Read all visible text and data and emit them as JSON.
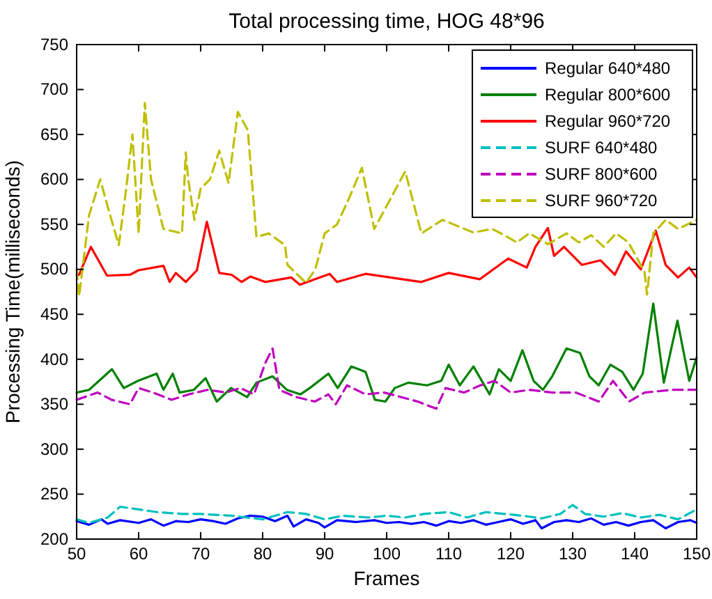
{
  "chart_data": {
    "type": "line",
    "title": "Total processing time, HOG 48*96",
    "xlabel": "Frames",
    "ylabel": "Processing Time(milliseconds)",
    "xlim": [
      50,
      150
    ],
    "xticks": [
      50,
      60,
      70,
      80,
      90,
      100,
      110,
      120,
      130,
      140,
      150
    ],
    "ylim": [
      200,
      750
    ],
    "yticks": [
      200,
      250,
      300,
      350,
      400,
      450,
      500,
      550,
      600,
      650,
      700,
      750
    ],
    "grid": false,
    "legend": "top right",
    "marker": "none",
    "series": [
      {
        "name": "Regular 640*480",
        "color": "#0000ff",
        "line_style": "solid",
        "x": [
          50,
          52,
          54,
          55,
          57,
          60,
          62,
          64,
          66,
          68,
          70,
          72,
          74,
          76,
          78,
          80,
          82,
          84,
          85,
          87,
          89,
          90,
          92,
          95,
          98,
          100,
          102,
          104,
          106,
          108,
          110,
          112,
          114,
          116,
          118,
          120,
          122,
          124,
          125,
          127,
          129,
          131,
          133,
          135,
          137,
          139,
          141,
          143,
          145,
          147,
          149,
          150
        ],
        "values": [
          220,
          216,
          222,
          217,
          221,
          218,
          222,
          215,
          220,
          219,
          222,
          220,
          217,
          223,
          226,
          225,
          220,
          226,
          214,
          222,
          218,
          213,
          221,
          219,
          221,
          218,
          219,
          217,
          219,
          215,
          220,
          218,
          221,
          216,
          219,
          222,
          217,
          221,
          212,
          219,
          221,
          219,
          223,
          216,
          219,
          215,
          219,
          221,
          212,
          219,
          221,
          218
        ]
      },
      {
        "name": "Regular 800*600",
        "color": "#008000",
        "line_style": "solid",
        "x": [
          50,
          52,
          55.7,
          57.6,
          59.9,
          62.9,
          64,
          65.5,
          66.6,
          68.9,
          70.8,
          72.6,
          74.9,
          77.5,
          79,
          81.6,
          83.9,
          86.1,
          87.6,
          90.6,
          92.1,
          94.3,
          96.6,
          98.1,
          99.8,
          101.3,
          103.5,
          106.5,
          108.8,
          110,
          111.8,
          114,
          116.6,
          118.1,
          120,
          121.9,
          123.7,
          125.2,
          126.7,
          129,
          131.2,
          132.7,
          134.2,
          136.1,
          138,
          139.8,
          141.3,
          143,
          144.7,
          146.9,
          148.8,
          150
        ],
        "values": [
          363,
          366,
          389,
          368,
          376,
          384,
          366,
          384,
          363,
          366,
          379,
          353,
          368,
          358,
          374,
          381,
          366,
          361,
          368,
          384,
          368,
          392,
          386,
          355,
          353,
          368,
          374,
          371,
          376,
          394,
          371,
          392,
          361,
          389,
          376,
          410,
          376,
          366,
          381,
          412,
          407,
          381,
          371,
          394,
          386,
          366,
          384,
          462,
          374,
          443,
          376,
          402
        ]
      },
      {
        "name": "Regular 960*720",
        "color": "#ff0000",
        "line_style": "solid",
        "x": [
          50,
          50.4,
          52.3,
          54.9,
          58.6,
          60,
          64,
          65,
          66,
          67.6,
          69.4,
          71,
          73,
          75,
          76.6,
          78,
          80.4,
          84.6,
          86,
          90.8,
          92,
          96.6,
          100.6,
          105.6,
          110,
          115,
          119.6,
          122.6,
          124,
          126,
          127,
          128.6,
          131.5,
          134.5,
          136.8,
          138.6,
          141,
          143.4,
          145,
          147,
          148.8,
          150
        ],
        "values": [
          494,
          494,
          525,
          493,
          494,
          499,
          504,
          486,
          496,
          486,
          499,
          553,
          496,
          494,
          486,
          492,
          486,
          491,
          483,
          495,
          486,
          495,
          491,
          486,
          496,
          489,
          512,
          502,
          525,
          546,
          515,
          525,
          505,
          510,
          494,
          520,
          500,
          543,
          505,
          491,
          502,
          491
        ]
      },
      {
        "name": "SURF 640*480",
        "color": "#00bfbf",
        "line_style": "dashed",
        "x": [
          50,
          52,
          55,
          57,
          60,
          63,
          67,
          70,
          75,
          80,
          84,
          87,
          90,
          93,
          97,
          100,
          103,
          106,
          110,
          113,
          116,
          119,
          122,
          125,
          128,
          130,
          132,
          135,
          138,
          141,
          144,
          147,
          150
        ],
        "values": [
          222,
          218,
          224,
          236,
          233,
          230,
          228,
          228,
          226,
          222,
          230,
          228,
          222,
          226,
          224,
          226,
          224,
          228,
          230,
          224,
          230,
          228,
          226,
          223,
          228,
          238,
          228,
          225,
          229,
          224,
          227,
          222,
          233
        ]
      },
      {
        "name": "SURF 800*600",
        "color": "#bf00bf",
        "line_style": "dashed",
        "x": [
          50,
          53.4,
          55.6,
          58.6,
          60,
          62.3,
          65.3,
          68.1,
          71.1,
          74.1,
          76.4,
          78.6,
          80.5,
          81.6,
          82.7,
          85.4,
          88.4,
          90.6,
          91.8,
          93.6,
          96.6,
          99.6,
          105,
          108,
          109.5,
          112.5,
          115.1,
          117.4,
          120,
          123,
          126.7,
          130.5,
          134.2,
          136.5,
          139.1,
          141.6,
          146.1,
          150
        ],
        "values": [
          355,
          363,
          355,
          350,
          368,
          363,
          355,
          361,
          366,
          363,
          368,
          361,
          397,
          412,
          366,
          358,
          353,
          361,
          350,
          371,
          361,
          363,
          353,
          345,
          368,
          363,
          371,
          376,
          363,
          366,
          363,
          363,
          353,
          376,
          353,
          363,
          366,
          366
        ]
      },
      {
        "name": "SURF 960*720",
        "color": "#bfbf00",
        "line_style": "dashed",
        "x": [
          50,
          50.4,
          52,
          53.8,
          55,
          56.8,
          58,
          59,
          60,
          61,
          62,
          64,
          67,
          67.6,
          68,
          69,
          70,
          71.5,
          73,
          74.5,
          76,
          77.6,
          79,
          81,
          83.6,
          84,
          87,
          88.5,
          90,
          92,
          94,
          96,
          98,
          103,
          105.6,
          109,
          114,
          117,
          119,
          121,
          123,
          126,
          129,
          131,
          133,
          135,
          137,
          139,
          141.6,
          142,
          143,
          145,
          147,
          150
        ],
        "values": [
          500,
          470,
          560,
          600,
          570,
          527,
          590,
          650,
          540,
          685,
          600,
          545,
          540,
          630,
          600,
          555,
          590,
          600,
          632,
          596,
          675,
          655,
          536,
          540,
          527,
          505,
          485,
          500,
          540,
          550,
          580,
          613,
          545,
          609,
          540,
          555,
          541,
          545,
          538,
          530,
          540,
          528,
          540,
          530,
          538,
          525,
          540,
          530,
          497,
          472,
          540,
          555,
          545,
          555
        ]
      }
    ]
  }
}
